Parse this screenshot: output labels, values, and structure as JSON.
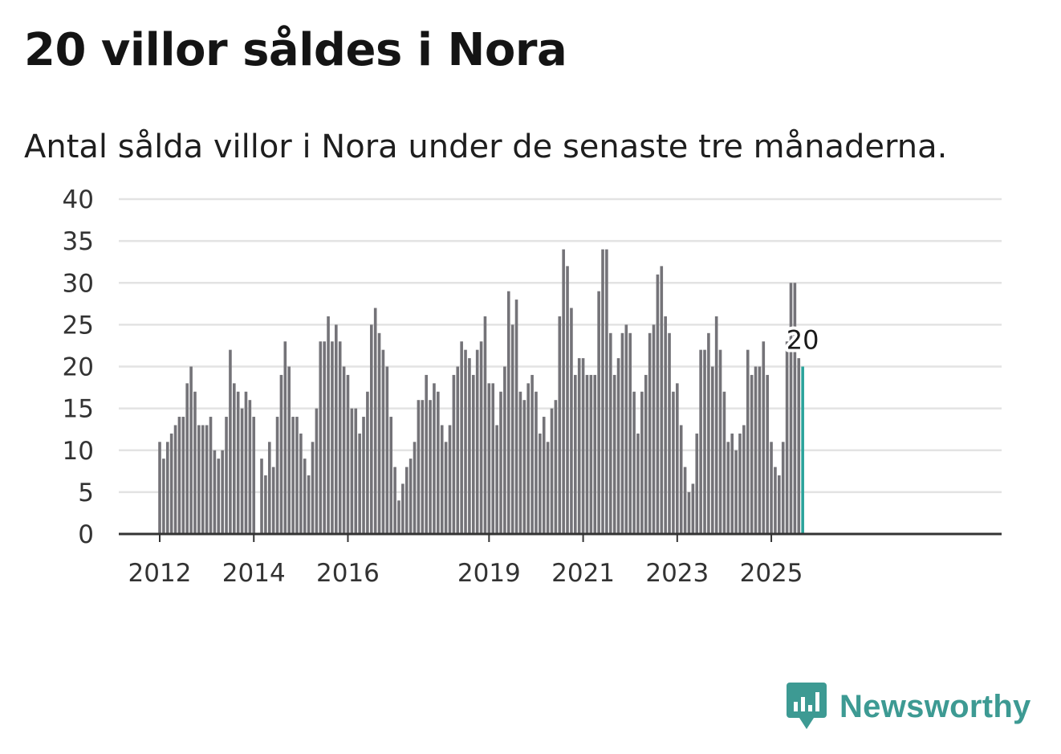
{
  "title": "20 villor såldes i Nora",
  "subtitle": "Antal sålda villor i Nora under de senaste tre månaderna.",
  "brand": {
    "name": "Newsworthy",
    "icon": "newsworthy-logo-icon",
    "color": "#3d9a93"
  },
  "colors": {
    "bar": "#747378",
    "highlight": "#2aa39b",
    "grid": "#e3e3e3",
    "axis": "#333333"
  },
  "chart_data": {
    "type": "bar",
    "title": "20 villor såldes i Nora",
    "subtitle": "Antal sålda villor i Nora under de senaste tre månaderna.",
    "xlabel": "",
    "ylabel": "",
    "ylim": [
      0,
      40
    ],
    "yticks": [
      0,
      5,
      10,
      15,
      20,
      25,
      30,
      35,
      40
    ],
    "grid": true,
    "x_start": "2012-01",
    "x_tick_labels": [
      {
        "label": "2012",
        "month": "2012-01"
      },
      {
        "label": "2014",
        "month": "2014-01"
      },
      {
        "label": "2016",
        "month": "2016-01"
      },
      {
        "label": "2019",
        "month": "2019-01"
      },
      {
        "label": "2021",
        "month": "2021-01"
      },
      {
        "label": "2023",
        "month": "2023-01"
      },
      {
        "label": "2025",
        "month": "2025-01"
      }
    ],
    "values": [
      11,
      9,
      11,
      12,
      13,
      14,
      14,
      18,
      20,
      17,
      13,
      13,
      13,
      14,
      10,
      9,
      10,
      14,
      22,
      18,
      17,
      15,
      17,
      16,
      14,
      0,
      9,
      7,
      11,
      8,
      14,
      19,
      23,
      20,
      14,
      14,
      12,
      9,
      7,
      11,
      15,
      23,
      23,
      26,
      23,
      25,
      23,
      20,
      19,
      15,
      15,
      12,
      14,
      17,
      25,
      27,
      24,
      22,
      20,
      14,
      8,
      4,
      6,
      8,
      9,
      11,
      16,
      16,
      19,
      16,
      18,
      17,
      13,
      11,
      13,
      19,
      20,
      23,
      22,
      21,
      19,
      22,
      23,
      26,
      18,
      18,
      13,
      17,
      20,
      29,
      25,
      28,
      17,
      16,
      18,
      19,
      17,
      12,
      14,
      11,
      15,
      16,
      26,
      34,
      32,
      27,
      19,
      21,
      21,
      19,
      19,
      19,
      29,
      34,
      34,
      24,
      19,
      21,
      24,
      25,
      24,
      17,
      12,
      17,
      19,
      24,
      25,
      31,
      32,
      26,
      24,
      17,
      18,
      13,
      8,
      5,
      6,
      12,
      22,
      22,
      24,
      20,
      26,
      22,
      17,
      11,
      12,
      10,
      12,
      13,
      22,
      19,
      20,
      20,
      23,
      19,
      11,
      8,
      7,
      11,
      23,
      30,
      30,
      21,
      20
    ],
    "highlight_last": true,
    "annotation": {
      "text": "20",
      "month": "2025-09"
    }
  }
}
